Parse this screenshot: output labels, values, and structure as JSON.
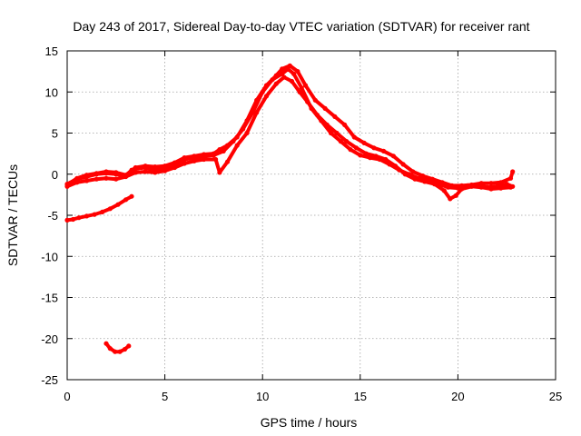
{
  "chart_data": {
    "type": "scatter",
    "title": "Day 243 of 2017, Sidereal Day-to-day VTEC variation (SDTVAR) for receiver rant",
    "xlabel": "GPS time / hours",
    "ylabel": "SDTVAR / TECUs",
    "xlim": [
      0,
      25
    ],
    "ylim": [
      -25,
      15
    ],
    "xticks": [
      0,
      5,
      10,
      15,
      20,
      25
    ],
    "yticks": [
      -25,
      -20,
      -15,
      -10,
      -5,
      0,
      5,
      10,
      15
    ],
    "grid": true,
    "series_color": "#ff0000",
    "series": [
      {
        "name": "main trace",
        "points": [
          [
            0,
            -1.2
          ],
          [
            0.5,
            -0.6
          ],
          [
            1,
            -0.3
          ],
          [
            1.5,
            0
          ],
          [
            2,
            0.1
          ],
          [
            2.5,
            0
          ],
          [
            3,
            -0.2
          ],
          [
            3.3,
            0.5
          ],
          [
            3.8,
            0.8
          ],
          [
            4.5,
            0.6
          ],
          [
            5,
            0.6
          ],
          [
            5.5,
            1.2
          ],
          [
            6,
            1.8
          ],
          [
            6.5,
            2
          ],
          [
            7,
            2.2
          ],
          [
            7.5,
            2.3
          ],
          [
            8,
            2.8
          ],
          [
            8.5,
            4
          ],
          [
            9,
            5.5
          ],
          [
            9.5,
            7.5
          ],
          [
            10,
            10
          ],
          [
            10.5,
            11.5
          ],
          [
            11,
            12.2
          ],
          [
            11.3,
            12.8
          ],
          [
            11.6,
            12.2
          ],
          [
            12,
            10.5
          ],
          [
            12.5,
            8
          ],
          [
            13,
            6.5
          ],
          [
            13.5,
            5
          ],
          [
            14,
            4
          ],
          [
            14.5,
            3
          ],
          [
            15,
            2.3
          ],
          [
            15.5,
            2
          ],
          [
            16,
            1.8
          ],
          [
            16.5,
            1.2
          ],
          [
            17,
            0.5
          ],
          [
            17.5,
            0
          ],
          [
            18,
            -0.5
          ],
          [
            18.5,
            -0.8
          ],
          [
            19,
            -1.2
          ],
          [
            19.5,
            -1.6
          ],
          [
            20,
            -1.7
          ],
          [
            20.5,
            -1.4
          ],
          [
            21,
            -1.3
          ],
          [
            21.5,
            -1.6
          ],
          [
            22,
            -1.5
          ],
          [
            22.5,
            -1.2
          ],
          [
            22.8,
            -1.5
          ]
        ]
      },
      {
        "name": "upper branch",
        "points": [
          [
            0,
            -1.3
          ],
          [
            0.5,
            -0.5
          ],
          [
            1,
            -0.1
          ],
          [
            1.5,
            0.1
          ],
          [
            2,
            0.3
          ],
          [
            2.5,
            0.2
          ],
          [
            3,
            -0.1
          ],
          [
            3.5,
            0.8
          ],
          [
            4,
            1
          ],
          [
            4.5,
            0.9
          ],
          [
            5,
            1
          ],
          [
            5.5,
            1.4
          ],
          [
            6,
            2
          ],
          [
            6.5,
            2.2
          ],
          [
            7,
            2.4
          ],
          [
            7.5,
            2.5
          ],
          [
            7.8,
            3
          ],
          [
            8.2,
            3.5
          ],
          [
            8.7,
            4.5
          ],
          [
            9.2,
            6.5
          ],
          [
            9.7,
            9
          ],
          [
            10.2,
            10.8
          ],
          [
            10.7,
            12
          ],
          [
            11,
            12.8
          ],
          [
            11.4,
            13.2
          ],
          [
            11.8,
            12.5
          ],
          [
            12.2,
            10.8
          ],
          [
            12.7,
            9
          ],
          [
            13.2,
            8
          ],
          [
            13.7,
            7
          ],
          [
            14.2,
            6
          ],
          [
            14.7,
            4.5
          ],
          [
            15.2,
            3.8
          ],
          [
            15.7,
            3.2
          ],
          [
            16.2,
            2.8
          ],
          [
            16.7,
            2.2
          ],
          [
            17.2,
            1.2
          ],
          [
            17.7,
            0.3
          ],
          [
            18.2,
            -0.2
          ],
          [
            18.7,
            -0.6
          ],
          [
            19.2,
            -1
          ],
          [
            19.7,
            -1.4
          ],
          [
            20.2,
            -1.4
          ],
          [
            20.7,
            -1.3
          ],
          [
            21.2,
            -1.1
          ],
          [
            21.7,
            -1.1
          ],
          [
            22.2,
            -1
          ],
          [
            22.7,
            -0.5
          ],
          [
            22.8,
            0.3
          ]
        ]
      },
      {
        "name": "lower branch",
        "points": [
          [
            0,
            -1.5
          ],
          [
            0.5,
            -1
          ],
          [
            1,
            -0.8
          ],
          [
            1.5,
            -0.6
          ],
          [
            2,
            -0.5
          ],
          [
            2.5,
            -0.6
          ],
          [
            3,
            -0.3
          ],
          [
            3.5,
            0.2
          ],
          [
            4,
            0.3
          ],
          [
            4.5,
            0.2
          ],
          [
            5,
            0.4
          ],
          [
            5.5,
            0.8
          ],
          [
            6,
            1.3
          ],
          [
            6.5,
            1.6
          ],
          [
            7,
            1.8
          ],
          [
            7.6,
            1.8
          ],
          [
            7.8,
            0.2
          ],
          [
            8.2,
            1.5
          ],
          [
            8.7,
            3.5
          ],
          [
            9.2,
            5
          ],
          [
            9.7,
            7.5
          ],
          [
            10.2,
            9.5
          ],
          [
            10.7,
            11
          ],
          [
            11.1,
            11.8
          ],
          [
            11.5,
            11.3
          ],
          [
            11.9,
            10
          ],
          [
            12.3,
            8.8
          ],
          [
            12.8,
            7.2
          ],
          [
            13.3,
            6
          ],
          [
            13.8,
            5
          ],
          [
            14.3,
            4
          ],
          [
            14.8,
            3.2
          ],
          [
            15.3,
            2.5
          ],
          [
            15.8,
            2.2
          ],
          [
            16.3,
            1.8
          ],
          [
            16.8,
            1
          ],
          [
            17.3,
            0
          ],
          [
            17.8,
            -0.6
          ],
          [
            18.3,
            -0.9
          ],
          [
            18.8,
            -1.2
          ],
          [
            19.3,
            -2
          ],
          [
            19.6,
            -3
          ],
          [
            19.9,
            -2.6
          ],
          [
            20.2,
            -1.8
          ],
          [
            20.7,
            -1.5
          ],
          [
            21.2,
            -1.6
          ],
          [
            21.7,
            -1.8
          ],
          [
            22.2,
            -1.7
          ],
          [
            22.7,
            -1.6
          ]
        ]
      },
      {
        "name": "secondary trace",
        "points": [
          [
            0,
            -5.6
          ],
          [
            0.3,
            -5.5
          ],
          [
            0.6,
            -5.3
          ],
          [
            1,
            -5.1
          ],
          [
            1.4,
            -4.9
          ],
          [
            1.8,
            -4.6
          ],
          [
            2.2,
            -4.2
          ],
          [
            2.6,
            -3.7
          ],
          [
            3,
            -3.1
          ],
          [
            3.3,
            -2.7
          ]
        ]
      },
      {
        "name": "isolated arc",
        "points": [
          [
            2.0,
            -20.6
          ],
          [
            2.2,
            -21.2
          ],
          [
            2.45,
            -21.6
          ],
          [
            2.7,
            -21.6
          ],
          [
            2.95,
            -21.3
          ],
          [
            3.15,
            -20.9
          ]
        ]
      }
    ]
  }
}
